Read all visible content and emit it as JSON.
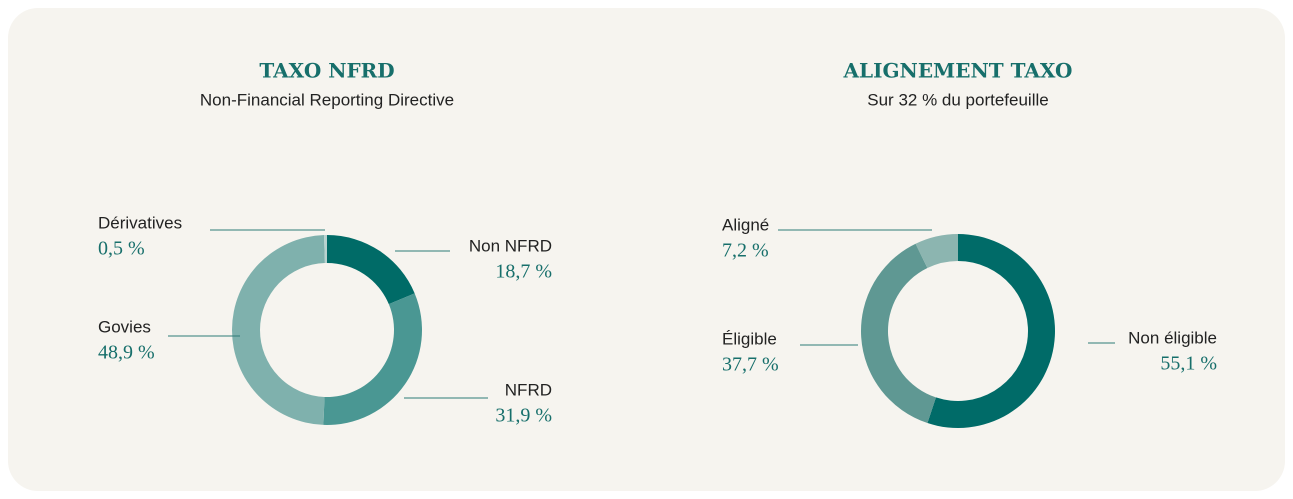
{
  "chart_data": [
    {
      "type": "pie",
      "title": "TAXO NFRD",
      "subtitle": "Non-Financial Reporting Directive",
      "categories": [
        "Non NFRD",
        "NFRD",
        "Govies",
        "Dérivatives"
      ],
      "values": [
        18.7,
        31.9,
        48.9,
        0.5
      ],
      "value_labels": [
        "18,7 %",
        "31,9 %",
        "48,9 %",
        "0,5 %"
      ],
      "colors": [
        "#006b67",
        "#4a9793",
        "#7fb1ad",
        "#b9d2cf"
      ]
    },
    {
      "type": "pie",
      "title": "ALIGNEMENT TAXO",
      "subtitle": "Sur 32 % du portefeuille",
      "categories": [
        "Non éligible",
        "Éligible",
        "Aligné"
      ],
      "values": [
        55.1,
        37.7,
        7.2
      ],
      "value_labels": [
        "55,1 %",
        "37,7 %",
        "7,2 %"
      ],
      "colors": [
        "#006b68",
        "#5f9893",
        "#8cb5b0"
      ]
    }
  ]
}
